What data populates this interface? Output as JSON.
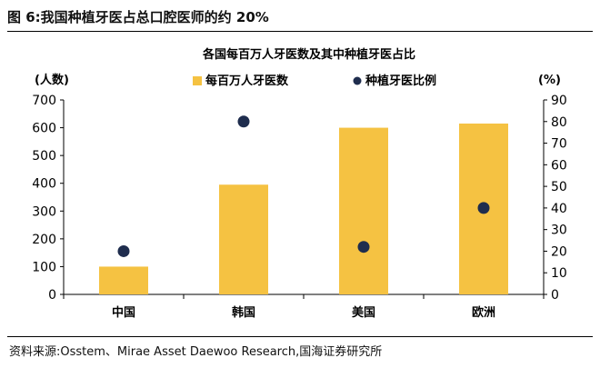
{
  "figure": {
    "label": "图 6:我国种植牙医占总口腔医师的约 20%",
    "source": "资料来源:Osstem、Mirae Asset Daewoo Research,国海证券研究所"
  },
  "chart_data": {
    "type": "bar+scatter",
    "title": "各国每百万人牙医数及其中种植牙医占比",
    "categories": [
      "中国",
      "韩国",
      "美国",
      "欧洲"
    ],
    "series": [
      {
        "name": "每百万人牙医数",
        "type": "bar",
        "axis": "left",
        "color": "#F5C242",
        "values": [
          100,
          395,
          600,
          615
        ]
      },
      {
        "name": "种植牙医比例",
        "type": "scatter",
        "axis": "right",
        "color": "#1F2D4E",
        "values": [
          20,
          80,
          22,
          40
        ]
      }
    ],
    "y_left": {
      "label": "(人数)",
      "min": 0,
      "max": 700,
      "ticks": [
        0,
        100,
        200,
        300,
        400,
        500,
        600,
        700
      ]
    },
    "y_right": {
      "label": "(%)",
      "min": 0,
      "max": 90,
      "ticks": [
        0,
        10,
        20,
        30,
        40,
        50,
        60,
        70,
        80,
        90
      ]
    },
    "legend": "top-center",
    "grid": false
  }
}
